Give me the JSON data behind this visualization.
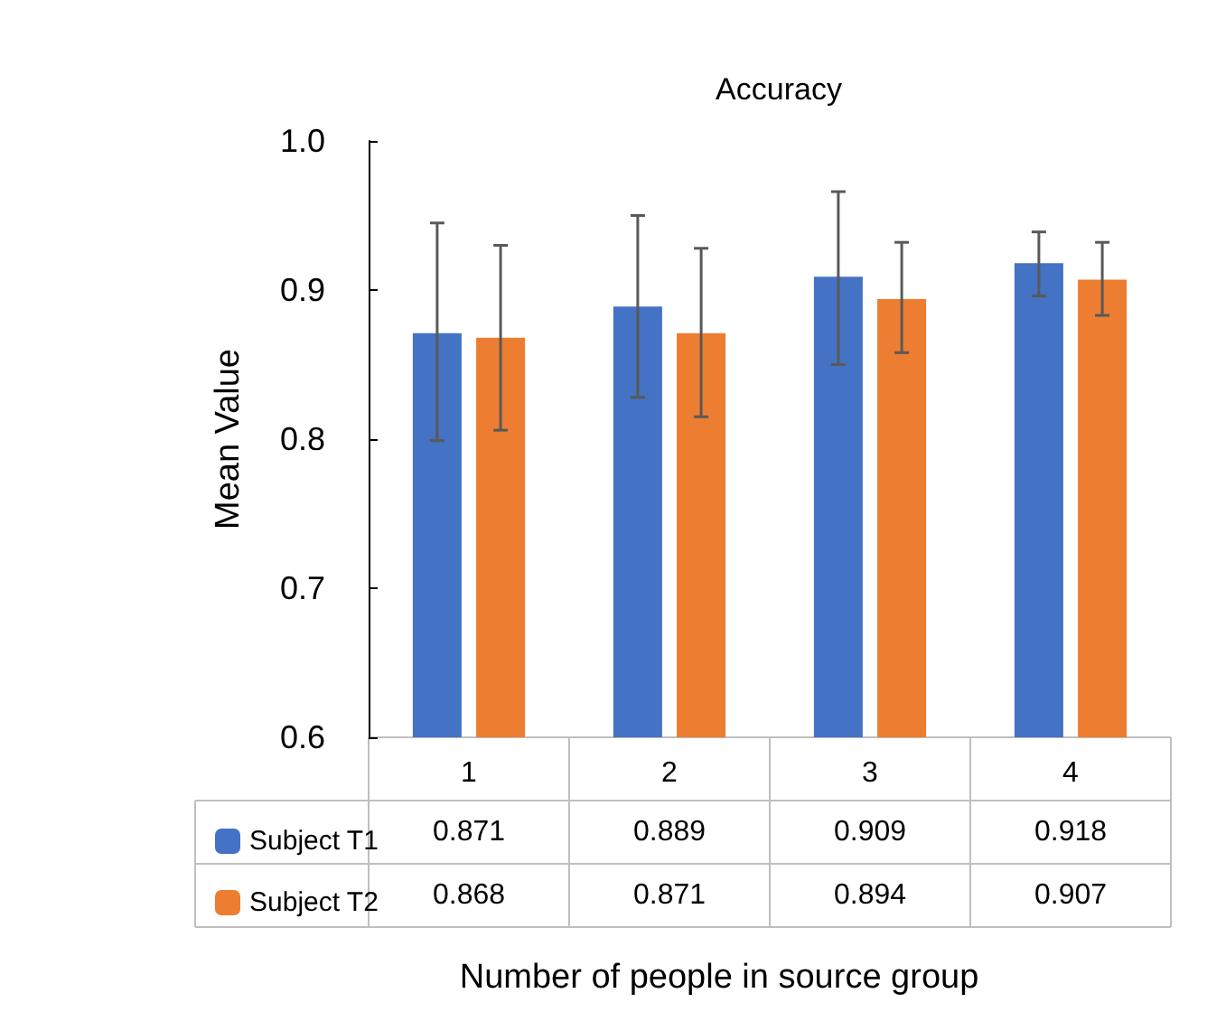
{
  "chart_data": {
    "type": "bar",
    "title": "Accuracy",
    "xlabel": "Number of people in source group",
    "ylabel": "Mean Value",
    "categories": [
      "1",
      "2",
      "3",
      "4"
    ],
    "series": [
      {
        "name": "Subject T1",
        "color": "#4472c4",
        "values": [
          0.871,
          0.889,
          0.909,
          0.918
        ],
        "errors": [
          [
            0.799,
            0.945
          ],
          [
            0.828,
            0.95
          ],
          [
            0.85,
            0.966
          ],
          [
            0.896,
            0.939
          ]
        ]
      },
      {
        "name": "Subject T2",
        "color": "#ed7d31",
        "values": [
          0.868,
          0.871,
          0.894,
          0.907
        ],
        "errors": [
          [
            0.806,
            0.93
          ],
          [
            0.815,
            0.928
          ],
          [
            0.858,
            0.932
          ],
          [
            0.883,
            0.932
          ]
        ]
      }
    ],
    "ylim": [
      0.6,
      1.0
    ],
    "yticks": [
      0.6,
      0.7,
      0.8,
      0.9,
      {
        "value": 1.0,
        "label": "1.0"
      }
    ],
    "grid": false,
    "legend": "bottom left",
    "data_labels": true
  }
}
